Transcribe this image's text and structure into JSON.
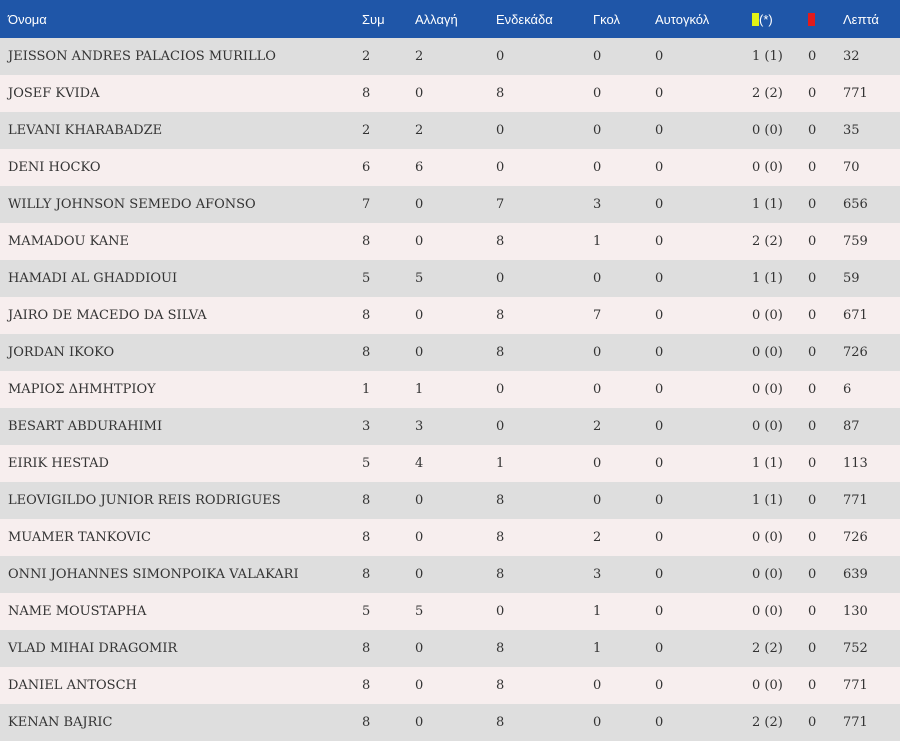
{
  "headers": {
    "name": "Όνομα",
    "appearances": "Συμ",
    "substitute": "Αλλαγή",
    "starting": "Ενδεκάδα",
    "goals": "Γκολ",
    "own_goals": "Αυτογκόλ",
    "yellow_suffix": "(*)",
    "minutes": "Λεπτά"
  },
  "colors": {
    "header_bg": "#1f56a8",
    "row_odd": "#dedede",
    "row_even": "#f7eeee",
    "yellow_card": "#e2f214",
    "red_card": "#e21b1b"
  },
  "icons": {
    "yellow": "yellow-card-icon",
    "red": "red-card-icon"
  },
  "players": [
    {
      "name": "JEISSON ANDRES PALACIOS MURILLO",
      "apps": "2",
      "subs": "2",
      "starts": "0",
      "goals": "0",
      "own_goals": "0",
      "yellow": "1 (1)",
      "red": "0",
      "minutes": "32"
    },
    {
      "name": "JOSEF KVIDA",
      "apps": "8",
      "subs": "0",
      "starts": "8",
      "goals": "0",
      "own_goals": "0",
      "yellow": "2 (2)",
      "red": "0",
      "minutes": "771"
    },
    {
      "name": "LEVANI KHARABADZE",
      "apps": "2",
      "subs": "2",
      "starts": "0",
      "goals": "0",
      "own_goals": "0",
      "yellow": "0 (0)",
      "red": "0",
      "minutes": "35"
    },
    {
      "name": "DENI HOCKO",
      "apps": "6",
      "subs": "6",
      "starts": "0",
      "goals": "0",
      "own_goals": "0",
      "yellow": "0 (0)",
      "red": "0",
      "minutes": "70"
    },
    {
      "name": "WILLY JOHNSON SEMEDO AFONSO",
      "apps": "7",
      "subs": "0",
      "starts": "7",
      "goals": "3",
      "own_goals": "0",
      "yellow": "1 (1)",
      "red": "0",
      "minutes": "656"
    },
    {
      "name": "MAMADOU KANE",
      "apps": "8",
      "subs": "0",
      "starts": "8",
      "goals": "1",
      "own_goals": "0",
      "yellow": "2 (2)",
      "red": "0",
      "minutes": "759"
    },
    {
      "name": "HAMADI AL GHADDIOUI",
      "apps": "5",
      "subs": "5",
      "starts": "0",
      "goals": "0",
      "own_goals": "0",
      "yellow": "1 (1)",
      "red": "0",
      "minutes": "59"
    },
    {
      "name": "JAIRO DE MACEDO DA SILVA",
      "apps": "8",
      "subs": "0",
      "starts": "8",
      "goals": "7",
      "own_goals": "0",
      "yellow": "0 (0)",
      "red": "0",
      "minutes": "671"
    },
    {
      "name": "JORDAN IKOKO",
      "apps": "8",
      "subs": "0",
      "starts": "8",
      "goals": "0",
      "own_goals": "0",
      "yellow": "0 (0)",
      "red": "0",
      "minutes": "726"
    },
    {
      "name": "ΜΑΡΙΟΣ ΔΗΜΗΤΡΙΟΥ",
      "apps": "1",
      "subs": "1",
      "starts": "0",
      "goals": "0",
      "own_goals": "0",
      "yellow": "0 (0)",
      "red": "0",
      "minutes": "6"
    },
    {
      "name": "BESART ABDURAHIMI",
      "apps": "3",
      "subs": "3",
      "starts": "0",
      "goals": "2",
      "own_goals": "0",
      "yellow": "0 (0)",
      "red": "0",
      "minutes": "87"
    },
    {
      "name": "EIRIK HESTAD",
      "apps": "5",
      "subs": "4",
      "starts": "1",
      "goals": "0",
      "own_goals": "0",
      "yellow": "1 (1)",
      "red": "0",
      "minutes": "113"
    },
    {
      "name": "LEOVIGILDO JUNIOR REIS RODRIGUES",
      "apps": "8",
      "subs": "0",
      "starts": "8",
      "goals": "0",
      "own_goals": "0",
      "yellow": "1 (1)",
      "red": "0",
      "minutes": "771"
    },
    {
      "name": "MUAMER TANKOVIC",
      "apps": "8",
      "subs": "0",
      "starts": "8",
      "goals": "2",
      "own_goals": "0",
      "yellow": "0 (0)",
      "red": "0",
      "minutes": "726"
    },
    {
      "name": "ONNI JOHANNES SIMONPOIKA VALAKARI",
      "apps": "8",
      "subs": "0",
      "starts": "8",
      "goals": "3",
      "own_goals": "0",
      "yellow": "0 (0)",
      "red": "0",
      "minutes": "639"
    },
    {
      "name": "NAME MOUSTAPHA",
      "apps": "5",
      "subs": "5",
      "starts": "0",
      "goals": "1",
      "own_goals": "0",
      "yellow": "0 (0)",
      "red": "0",
      "minutes": "130"
    },
    {
      "name": "VLAD MIHAI DRAGOMIR",
      "apps": "8",
      "subs": "0",
      "starts": "8",
      "goals": "1",
      "own_goals": "0",
      "yellow": "2 (2)",
      "red": "0",
      "minutes": "752"
    },
    {
      "name": "DANIEL ANTOSCH",
      "apps": "8",
      "subs": "0",
      "starts": "8",
      "goals": "0",
      "own_goals": "0",
      "yellow": "0 (0)",
      "red": "0",
      "minutes": "771"
    },
    {
      "name": "KENAN BAJRIC",
      "apps": "8",
      "subs": "0",
      "starts": "8",
      "goals": "0",
      "own_goals": "0",
      "yellow": "2 (2)",
      "red": "0",
      "minutes": "771"
    }
  ]
}
